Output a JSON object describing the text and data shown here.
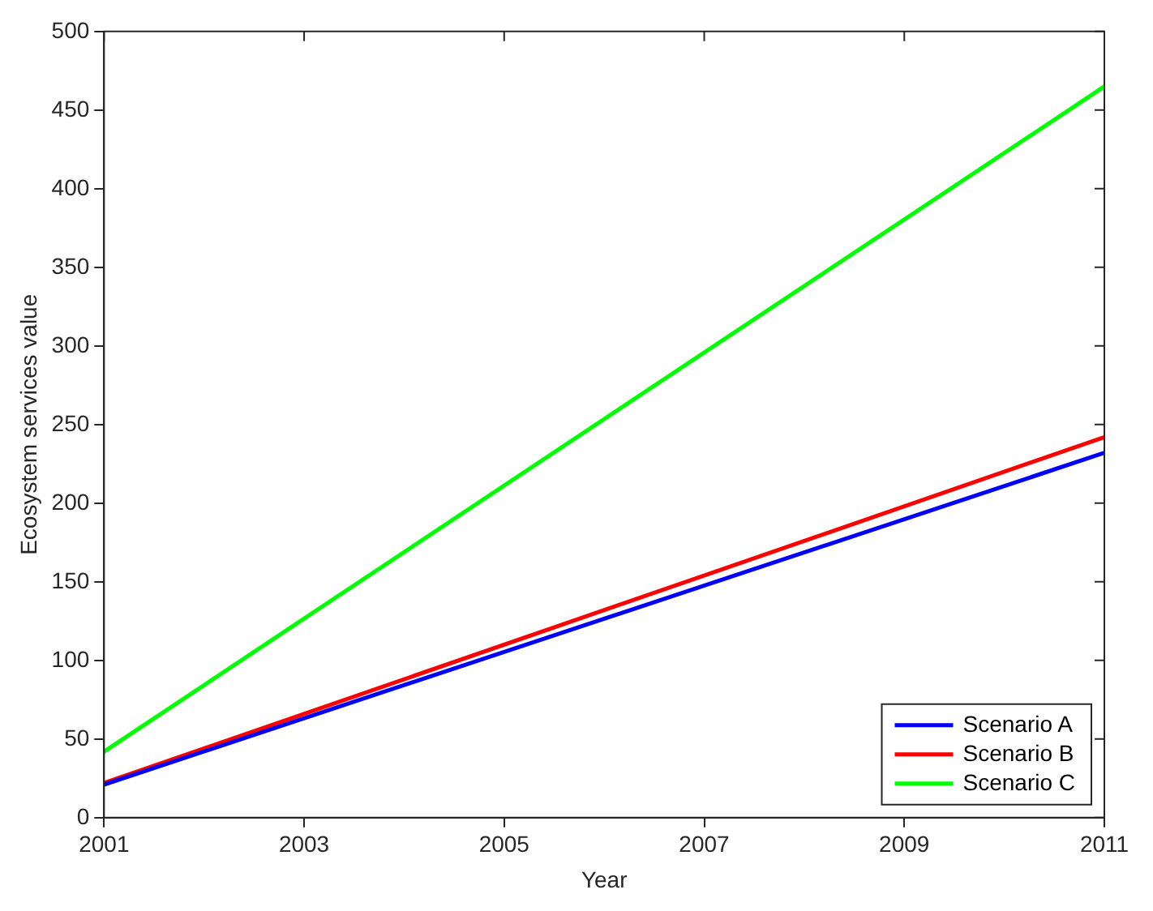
{
  "chart_data": {
    "type": "line",
    "xlabel": "Year",
    "ylabel": "Ecosystem services value",
    "x": [
      2001,
      2011
    ],
    "series": [
      {
        "name": "Scenario A",
        "color": "#0000ff",
        "values": [
          21,
          232
        ]
      },
      {
        "name": "Scenario B",
        "color": "#ff0000",
        "values": [
          22,
          242
        ]
      },
      {
        "name": "Scenario C",
        "color": "#00ff00",
        "values": [
          42,
          465
        ]
      }
    ],
    "xlim": [
      2001,
      2011
    ],
    "xticks": [
      2001,
      2003,
      2005,
      2007,
      2009,
      2011
    ],
    "ylim": [
      0,
      500
    ],
    "yticks": [
      0,
      50,
      100,
      150,
      200,
      250,
      300,
      350,
      400,
      450,
      500
    ],
    "grid": false,
    "legend": "bottom right",
    "marker": "none",
    "line_style": "solid"
  }
}
